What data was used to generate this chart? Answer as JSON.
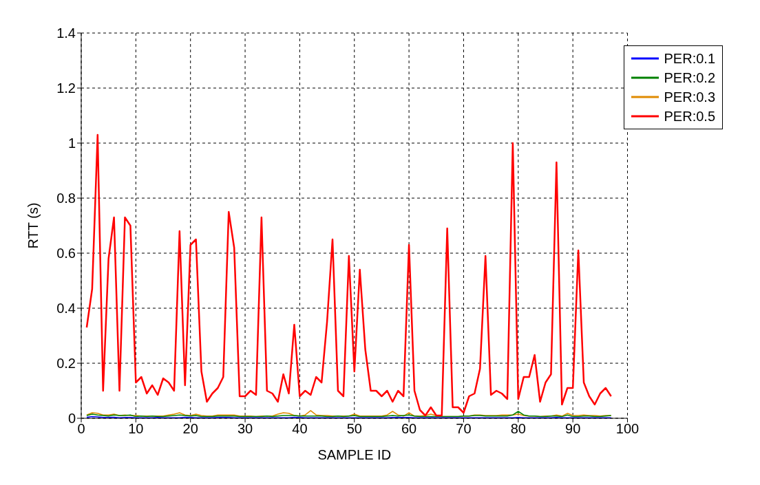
{
  "chart_data": {
    "type": "line",
    "xlabel": "SAMPLE ID",
    "ylabel": "RTT (s)",
    "x": [
      1,
      2,
      3,
      4,
      5,
      6,
      7,
      8,
      9,
      10,
      11,
      12,
      13,
      14,
      15,
      16,
      17,
      18,
      19,
      20,
      21,
      22,
      23,
      24,
      25,
      26,
      27,
      28,
      29,
      30,
      31,
      32,
      33,
      34,
      35,
      36,
      37,
      38,
      39,
      40,
      41,
      42,
      43,
      44,
      45,
      46,
      47,
      48,
      49,
      50,
      51,
      52,
      53,
      54,
      55,
      56,
      57,
      58,
      59,
      60,
      61,
      62,
      63,
      64,
      65,
      66,
      67,
      68,
      69,
      70,
      71,
      72,
      73,
      74,
      75,
      76,
      77,
      78,
      79,
      80,
      81,
      82,
      83,
      84,
      85,
      86,
      87,
      88,
      89,
      90,
      91,
      92,
      93,
      94,
      95,
      96,
      97
    ],
    "series": [
      {
        "name": "PER:0.1",
        "color": "#0000ff",
        "values": [
          0.004,
          0.006,
          0.005,
          0.003,
          0.003,
          0.004,
          0.002,
          0.003,
          0.003,
          0.002,
          0.002,
          0.002,
          0.002,
          0.003,
          0.002,
          0.002,
          0.002,
          0.002,
          0.004,
          0.003,
          0.002,
          0.002,
          0.002,
          0.002,
          0.003,
          0.003,
          0.003,
          0.002,
          0.002,
          0.002,
          0.002,
          0.002,
          0.002,
          0.002,
          0.002,
          0.002,
          0.002,
          0.002,
          0.004,
          0.003,
          0.002,
          0.002,
          0.002,
          0.002,
          0.002,
          0.002,
          0.002,
          0.002,
          0.002,
          0.002,
          0.002,
          0.002,
          0.002,
          0.002,
          0.002,
          0.002,
          0.003,
          0.003,
          0.003,
          0.003,
          0.002,
          0.002,
          0.002,
          0.002,
          0.002,
          0.002,
          0.002,
          0.002,
          0.002,
          0.002,
          0.002,
          0.002,
          0.002,
          0.002,
          0.002,
          0.002,
          0.002,
          0.002,
          0.002,
          0.003,
          0.002,
          0.002,
          0.002,
          0.002,
          0.002,
          0.002,
          0.003,
          0.002,
          0.002,
          0.002,
          0.002,
          0.002,
          0.002,
          0.002,
          0.002,
          0.002,
          0.002
        ]
      },
      {
        "name": "PER:0.2",
        "color": "#008000",
        "values": [
          0.01,
          0.015,
          0.012,
          0.01,
          0.008,
          0.012,
          0.01,
          0.01,
          0.012,
          0.006,
          0.008,
          0.006,
          0.008,
          0.006,
          0.006,
          0.008,
          0.01,
          0.012,
          0.01,
          0.008,
          0.01,
          0.006,
          0.006,
          0.006,
          0.008,
          0.008,
          0.008,
          0.008,
          0.006,
          0.006,
          0.006,
          0.006,
          0.006,
          0.008,
          0.006,
          0.008,
          0.01,
          0.01,
          0.01,
          0.008,
          0.008,
          0.008,
          0.008,
          0.008,
          0.006,
          0.006,
          0.008,
          0.006,
          0.008,
          0.01,
          0.006,
          0.006,
          0.006,
          0.006,
          0.006,
          0.008,
          0.01,
          0.008,
          0.01,
          0.012,
          0.008,
          0.006,
          0.006,
          0.006,
          0.006,
          0.006,
          0.006,
          0.006,
          0.006,
          0.008,
          0.008,
          0.01,
          0.01,
          0.008,
          0.008,
          0.008,
          0.008,
          0.008,
          0.012,
          0.025,
          0.012,
          0.008,
          0.008,
          0.006,
          0.006,
          0.008,
          0.008,
          0.006,
          0.012,
          0.006,
          0.006,
          0.008,
          0.008,
          0.006,
          0.006,
          0.008,
          0.01
        ]
      },
      {
        "name": "PER:0.3",
        "color": "#e08a00",
        "values": [
          0.012,
          0.02,
          0.018,
          0.012,
          0.012,
          0.015,
          0.01,
          0.012,
          0.01,
          0.01,
          0.008,
          0.008,
          0.008,
          0.008,
          0.008,
          0.012,
          0.015,
          0.02,
          0.012,
          0.01,
          0.015,
          0.01,
          0.008,
          0.008,
          0.012,
          0.012,
          0.012,
          0.012,
          0.008,
          0.008,
          0.008,
          0.006,
          0.008,
          0.008,
          0.008,
          0.015,
          0.02,
          0.018,
          0.01,
          0.008,
          0.012,
          0.028,
          0.012,
          0.01,
          0.01,
          0.008,
          0.008,
          0.008,
          0.008,
          0.015,
          0.008,
          0.008,
          0.008,
          0.008,
          0.008,
          0.012,
          0.025,
          0.012,
          0.008,
          0.02,
          0.008,
          0.008,
          0.01,
          0.015,
          0.01,
          0.006,
          0.006,
          0.006,
          0.006,
          0.008,
          0.008,
          0.012,
          0.012,
          0.01,
          0.01,
          0.01,
          0.012,
          0.012,
          0.012,
          0.015,
          0.01,
          0.008,
          0.008,
          0.006,
          0.008,
          0.008,
          0.012,
          0.008,
          0.018,
          0.01,
          0.01,
          0.012,
          0.01,
          0.01,
          0.008,
          0.01,
          0.01
        ]
      },
      {
        "name": "PER:0.5",
        "color": "#ff0000",
        "values": [
          0.33,
          0.47,
          1.03,
          0.1,
          0.58,
          0.73,
          0.1,
          0.73,
          0.7,
          0.13,
          0.15,
          0.09,
          0.12,
          0.085,
          0.145,
          0.13,
          0.1,
          0.68,
          0.12,
          0.63,
          0.65,
          0.17,
          0.06,
          0.09,
          0.11,
          0.15,
          0.75,
          0.62,
          0.08,
          0.08,
          0.1,
          0.085,
          0.73,
          0.1,
          0.09,
          0.06,
          0.16,
          0.09,
          0.34,
          0.08,
          0.1,
          0.085,
          0.15,
          0.13,
          0.35,
          0.65,
          0.1,
          0.08,
          0.59,
          0.17,
          0.54,
          0.25,
          0.1,
          0.1,
          0.08,
          0.1,
          0.06,
          0.1,
          0.08,
          0.63,
          0.1,
          0.03,
          0.01,
          0.04,
          0.01,
          0.01,
          0.69,
          0.04,
          0.04,
          0.02,
          0.08,
          0.09,
          0.18,
          0.59,
          0.085,
          0.1,
          0.09,
          0.07,
          1.0,
          0.07,
          0.15,
          0.15,
          0.23,
          0.06,
          0.13,
          0.16,
          0.93,
          0.05,
          0.11,
          0.11,
          0.61,
          0.13,
          0.08,
          0.05,
          0.09,
          0.11,
          0.08
        ]
      }
    ],
    "xlim": [
      0,
      100
    ],
    "xticks": [
      0,
      10,
      20,
      30,
      40,
      50,
      60,
      70,
      80,
      90,
      100
    ],
    "ylim": [
      0,
      1.4
    ],
    "yticks": [
      0,
      0.2,
      0.4,
      0.6,
      0.8,
      1,
      1.2,
      1.4
    ],
    "grid": true,
    "legend": "top right",
    "marker": "none",
    "line_style": "solid"
  }
}
